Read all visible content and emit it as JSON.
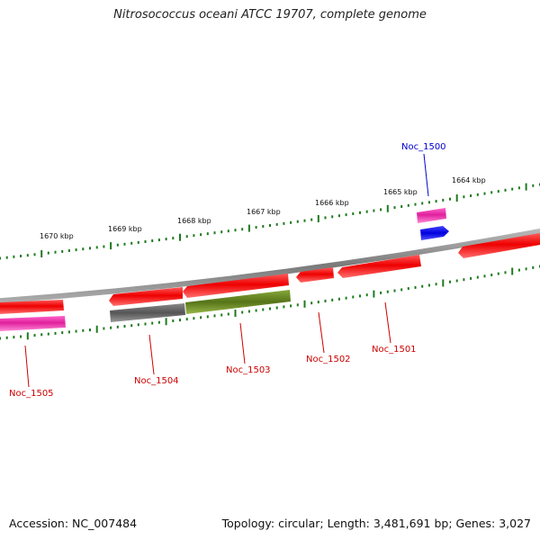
{
  "title": "Nitrosococcus oceani ATCC 19707, complete genome",
  "footer": {
    "accession": "Accession: NC_007484",
    "stats": "Topology: circular; Length: 3,481,691 bp; Genes: 3,027"
  },
  "colors": {
    "background": "#ffffff",
    "backbone": "#8a8a8a",
    "tick": "#1f7a1f",
    "gene_red": "#ee0000",
    "gene_pink": "#ee22aa",
    "gene_blue": "#0000ee",
    "gene_gray": "#666666",
    "gene_olive": "#5f7f1f",
    "label_red": "#cc0000",
    "label_blue": "#0000cc"
  },
  "scale_labels": [
    "1670 kbp",
    "1669 kbp",
    "1668 kbp",
    "1667 kbp",
    "1666 kbp",
    "1665 kbp",
    "1664 kbp"
  ],
  "genes": [
    {
      "name": "Noc_1505",
      "color": "#cc0000",
      "feature": "#ee22aa"
    },
    {
      "name": "Noc_1504",
      "color": "#cc0000",
      "feature": "#666666"
    },
    {
      "name": "Noc_1503",
      "color": "#cc0000",
      "feature": "#5f7f1f"
    },
    {
      "name": "Noc_1502",
      "color": "#cc0000",
      "feature": "#ee0000"
    },
    {
      "name": "Noc_1501",
      "color": "#cc0000",
      "feature": "#ee0000"
    },
    {
      "name": "Noc_1500",
      "color": "#0000cc",
      "feature": "#ee22aa"
    }
  ]
}
